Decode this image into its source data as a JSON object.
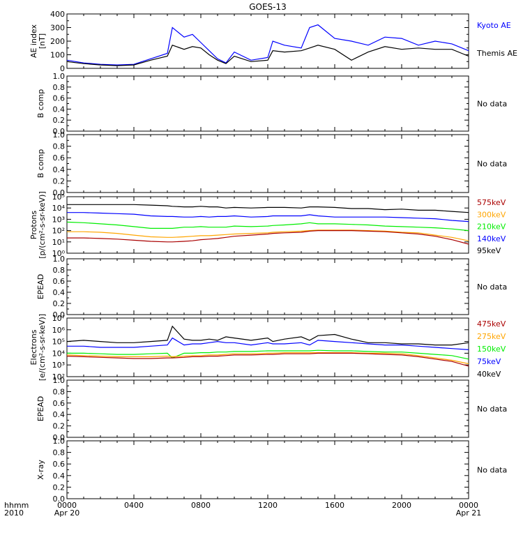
{
  "title": "GOES-13",
  "x_axis": {
    "corner_label_1": "hhmm",
    "corner_label_2": "2010",
    "ticks": [
      {
        "hour": 0,
        "label": "0000",
        "date": "Apr 20"
      },
      {
        "hour": 4,
        "label": "0400",
        "date": ""
      },
      {
        "hour": 8,
        "label": "0800",
        "date": ""
      },
      {
        "hour": 12,
        "label": "1200",
        "date": ""
      },
      {
        "hour": 16,
        "label": "1600",
        "date": ""
      },
      {
        "hour": 20,
        "label": "2000",
        "date": ""
      },
      {
        "hour": 24,
        "label": "0000",
        "date": "Apr 21"
      }
    ],
    "range_hours": [
      0,
      24
    ]
  },
  "colors": {
    "black": "#000000",
    "blue": "#0000ff",
    "green": "#00ee00",
    "orange": "#ffa500",
    "red": "#aa0000"
  },
  "panels": [
    {
      "id": "ae",
      "ylabel": [
        "AE index",
        "[nT]"
      ],
      "scale": "linear",
      "ylim": [
        0,
        400
      ],
      "ticks": [
        "0",
        "100",
        "200",
        "300",
        "400"
      ],
      "tick_values": [
        0,
        100,
        200,
        300,
        400
      ],
      "legend": [
        {
          "text": "Kyoto AE",
          "color": "#0000ff"
        },
        {
          "text": "Themis AE",
          "color": "#000000"
        }
      ]
    },
    {
      "id": "bcomp1",
      "ylabel": [
        "B comp"
      ],
      "scale": "linear",
      "ylim": [
        0,
        1
      ],
      "ticks": [
        "0.0",
        "0.2",
        "0.4",
        "0.6",
        "0.8",
        "1.0"
      ],
      "tick_values": [
        0,
        0.2,
        0.4,
        0.6,
        0.8,
        1.0
      ],
      "legend": [
        {
          "text": "No data",
          "color": "#000000"
        }
      ]
    },
    {
      "id": "bcomp2",
      "ylabel": [
        "B comp"
      ],
      "scale": "linear",
      "ylim": [
        0,
        1
      ],
      "ticks": [
        "0.0",
        "0.2",
        "0.4",
        "0.6",
        "0.8",
        "1.0"
      ],
      "tick_values": [
        0,
        0.2,
        0.4,
        0.6,
        0.8,
        1.0
      ],
      "legend": [
        {
          "text": "No data",
          "color": "#000000"
        }
      ]
    },
    {
      "id": "protons",
      "ylabel": [
        "Protons",
        "[p/(cm²-s-sr-keV)]"
      ],
      "scale": "log",
      "ylim": [
        0,
        5
      ],
      "ticks": [
        "10⁰",
        "10¹",
        "10²",
        "10³",
        "10⁴",
        "10⁵"
      ],
      "tick_values": [
        0,
        1,
        2,
        3,
        4,
        5
      ],
      "legend": [
        {
          "text": "575keV",
          "color": "#aa0000"
        },
        {
          "text": "300keV",
          "color": "#ffa500"
        },
        {
          "text": "210keV",
          "color": "#00ee00"
        },
        {
          "text": "140keV",
          "color": "#0000ff"
        },
        {
          "text": "95keV",
          "color": "#000000"
        }
      ]
    },
    {
      "id": "epead1",
      "ylabel": [
        "EPEAD"
      ],
      "scale": "linear",
      "ylim": [
        0,
        1
      ],
      "ticks": [
        "0.0",
        "0.2",
        "0.4",
        "0.6",
        "0.8",
        "1.0"
      ],
      "tick_values": [
        0,
        0.2,
        0.4,
        0.6,
        0.8,
        1.0
      ],
      "legend": [
        {
          "text": "No data",
          "color": "#000000"
        }
      ]
    },
    {
      "id": "electrons",
      "ylabel": [
        "Electrons",
        "[e/(cm²-s-sr-keV)]"
      ],
      "scale": "log",
      "ylim": [
        2,
        7
      ],
      "ticks": [
        "10²",
        "10³",
        "10⁴",
        "10⁵",
        "10⁶",
        "10⁷"
      ],
      "tick_values": [
        2,
        3,
        4,
        5,
        6,
        7
      ],
      "legend": [
        {
          "text": "475keV",
          "color": "#aa0000"
        },
        {
          "text": "275keV",
          "color": "#ffa500"
        },
        {
          "text": "150keV",
          "color": "#00ee00"
        },
        {
          "text": "75keV",
          "color": "#0000ff"
        },
        {
          "text": "40keV",
          "color": "#000000"
        }
      ]
    },
    {
      "id": "epead2",
      "ylabel": [
        "EPEAD"
      ],
      "scale": "linear",
      "ylim": [
        0,
        1
      ],
      "ticks": [
        "0.0",
        "0.2",
        "0.4",
        "0.6",
        "0.8",
        "1.0"
      ],
      "tick_values": [
        0,
        0.2,
        0.4,
        0.6,
        0.8,
        1.0
      ],
      "legend": [
        {
          "text": "No data",
          "color": "#000000"
        }
      ]
    },
    {
      "id": "xray",
      "ylabel": [
        "X-ray"
      ],
      "scale": "linear",
      "ylim": [
        0,
        1
      ],
      "ticks": [
        "0.0",
        "0.2",
        "0.4",
        "0.6",
        "0.8",
        "1.0"
      ],
      "tick_values": [
        0,
        0.2,
        0.4,
        0.6,
        0.8,
        1.0
      ],
      "legend": [
        {
          "text": "No data",
          "color": "#000000"
        }
      ]
    }
  ],
  "chart_data": {
    "type": "line",
    "title": "GOES-13",
    "xlabel": "hhmm",
    "x_hours": [
      0,
      1,
      2,
      3,
      4,
      5,
      6,
      6.3,
      7,
      7.5,
      8,
      8.5,
      9,
      9.5,
      10,
      11,
      12,
      12.3,
      13,
      14,
      14.5,
      15,
      16,
      17,
      18,
      19,
      20,
      21,
      22,
      23,
      24
    ],
    "series": [
      {
        "panel": "ae",
        "name": "Kyoto AE",
        "color": "#0000ff",
        "values": [
          60,
          40,
          30,
          25,
          30,
          70,
          110,
          300,
          230,
          250,
          190,
          130,
          70,
          40,
          120,
          60,
          80,
          200,
          170,
          150,
          300,
          320,
          220,
          200,
          170,
          230,
          220,
          170,
          200,
          180,
          130
        ]
      },
      {
        "panel": "ae",
        "name": "Themis AE",
        "color": "#000000",
        "values": [
          50,
          35,
          25,
          20,
          25,
          60,
          90,
          170,
          140,
          160,
          150,
          100,
          60,
          35,
          90,
          50,
          60,
          130,
          120,
          130,
          150,
          170,
          140,
          60,
          120,
          160,
          140,
          150,
          140,
          140,
          90
        ]
      },
      {
        "panel": "protons",
        "name": "95keV",
        "color": "#000000",
        "values": [
          4.3,
          4.3,
          4.3,
          4.3,
          4.3,
          4.25,
          4.2,
          4.15,
          4.1,
          4.1,
          4.15,
          4.1,
          4.1,
          4.0,
          4.05,
          4.0,
          4.05,
          4.05,
          4.05,
          4.0,
          4.1,
          4.1,
          4.05,
          3.95,
          3.95,
          3.85,
          3.9,
          3.8,
          3.8,
          3.7,
          3.6
        ]
      },
      {
        "panel": "protons",
        "name": "140keV",
        "color": "#0000ff",
        "values": [
          3.6,
          3.6,
          3.55,
          3.5,
          3.45,
          3.3,
          3.25,
          3.25,
          3.2,
          3.2,
          3.25,
          3.2,
          3.25,
          3.25,
          3.3,
          3.2,
          3.25,
          3.3,
          3.3,
          3.3,
          3.4,
          3.3,
          3.2,
          3.2,
          3.2,
          3.2,
          3.15,
          3.1,
          3.05,
          2.9,
          2.8
        ]
      },
      {
        "panel": "protons",
        "name": "210keV",
        "color": "#00ee00",
        "values": [
          2.75,
          2.7,
          2.6,
          2.5,
          2.35,
          2.2,
          2.2,
          2.2,
          2.3,
          2.3,
          2.35,
          2.3,
          2.3,
          2.3,
          2.4,
          2.35,
          2.4,
          2.45,
          2.5,
          2.6,
          2.7,
          2.6,
          2.6,
          2.55,
          2.5,
          2.4,
          2.35,
          2.3,
          2.25,
          2.15,
          2.0
        ]
      },
      {
        "panel": "protons",
        "name": "300keV",
        "color": "#ffa500",
        "values": [
          1.9,
          1.9,
          1.85,
          1.75,
          1.6,
          1.45,
          1.4,
          1.4,
          1.45,
          1.5,
          1.55,
          1.55,
          1.6,
          1.65,
          1.7,
          1.75,
          1.8,
          1.85,
          1.9,
          1.95,
          2.0,
          2.05,
          2.05,
          2.05,
          2.0,
          1.95,
          1.85,
          1.8,
          1.6,
          1.4,
          1.1
        ]
      },
      {
        "panel": "protons",
        "name": "575keV",
        "color": "#aa0000",
        "values": [
          1.35,
          1.35,
          1.3,
          1.25,
          1.15,
          1.05,
          1.0,
          1.0,
          1.05,
          1.1,
          1.2,
          1.25,
          1.3,
          1.4,
          1.5,
          1.6,
          1.7,
          1.75,
          1.8,
          1.85,
          1.95,
          2.0,
          2.0,
          2.0,
          1.95,
          1.9,
          1.8,
          1.7,
          1.5,
          1.2,
          0.8
        ]
      },
      {
        "panel": "electrons",
        "name": "40keV",
        "color": "#000000",
        "values": [
          5.0,
          5.1,
          5.0,
          4.9,
          4.9,
          5.0,
          5.1,
          6.3,
          5.2,
          5.1,
          5.1,
          5.2,
          5.1,
          5.4,
          5.3,
          5.1,
          5.3,
          5.0,
          5.2,
          5.4,
          5.1,
          5.5,
          5.6,
          5.2,
          4.9,
          4.9,
          4.8,
          4.8,
          4.7,
          4.7,
          4.9
        ]
      },
      {
        "panel": "electrons",
        "name": "75keV",
        "color": "#0000ff",
        "values": [
          4.6,
          4.6,
          4.5,
          4.5,
          4.5,
          4.6,
          4.7,
          5.3,
          4.7,
          4.8,
          4.8,
          4.9,
          5.0,
          4.9,
          4.9,
          4.7,
          4.9,
          4.8,
          4.8,
          4.9,
          4.7,
          5.1,
          5.0,
          4.9,
          4.8,
          4.7,
          4.7,
          4.6,
          4.5,
          4.4,
          4.3
        ]
      },
      {
        "panel": "electrons",
        "name": "150keV",
        "color": "#00ee00",
        "values": [
          4.0,
          4.0,
          3.95,
          3.9,
          3.9,
          3.95,
          4.0,
          3.6,
          4.0,
          4.0,
          4.05,
          4.05,
          4.1,
          4.1,
          4.15,
          4.15,
          4.2,
          4.2,
          4.2,
          4.2,
          4.2,
          4.25,
          4.2,
          4.2,
          4.15,
          4.1,
          4.1,
          4.0,
          3.9,
          3.8,
          3.5
        ]
      },
      {
        "panel": "electrons",
        "name": "275keV",
        "color": "#ffa500",
        "values": [
          3.85,
          3.8,
          3.75,
          3.7,
          3.7,
          3.7,
          3.75,
          3.7,
          3.75,
          3.8,
          3.8,
          3.85,
          3.85,
          3.9,
          3.95,
          3.95,
          4.0,
          4.0,
          4.05,
          4.05,
          4.05,
          4.05,
          4.05,
          4.05,
          4.0,
          4.0,
          3.95,
          3.8,
          3.6,
          3.4,
          3.1
        ]
      },
      {
        "panel": "electrons",
        "name": "475keV",
        "color": "#aa0000",
        "values": [
          3.75,
          3.7,
          3.65,
          3.6,
          3.55,
          3.55,
          3.6,
          3.6,
          3.65,
          3.7,
          3.7,
          3.75,
          3.75,
          3.8,
          3.85,
          3.85,
          3.9,
          3.9,
          3.95,
          3.95,
          3.95,
          4.0,
          4.0,
          4.0,
          3.95,
          3.9,
          3.85,
          3.7,
          3.5,
          3.3,
          2.9
        ]
      }
    ]
  }
}
